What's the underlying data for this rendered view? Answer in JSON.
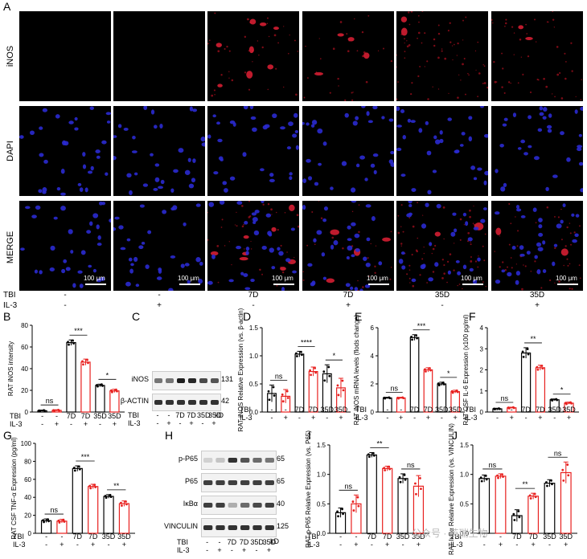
{
  "panels": {
    "A": "A",
    "B": "B",
    "C": "C",
    "D": "D",
    "E": "E",
    "F": "F",
    "G": "G",
    "H": "H",
    "I": "I",
    "J": "J"
  },
  "panelA": {
    "rows": [
      "iNOS",
      "DAPI",
      "MERGE"
    ],
    "scale_bar": "100 μm",
    "tbi_label": "TBI",
    "il3_label": "IL-3",
    "tbi": [
      "-",
      "-",
      "7D",
      "7D",
      "35D",
      "35D"
    ],
    "il3": [
      "-",
      "+",
      "-",
      "+",
      "-",
      "+"
    ]
  },
  "xgroups": {
    "tbi": [
      "-",
      "-",
      "7D",
      "7D",
      "35D",
      "35D"
    ],
    "il3": [
      "-",
      "+",
      "-",
      "+",
      "-",
      "+"
    ],
    "tbi_label": "TBI",
    "il3_label": "IL-3"
  },
  "blotC": {
    "bands": [
      "iNOS",
      "β-ACTIN"
    ],
    "kd": [
      "131",
      "42"
    ],
    "kd_unit": "kD"
  },
  "blotH": {
    "bands": [
      "p-P65",
      "P65",
      "IκBα",
      "VINCULIN"
    ],
    "kd": [
      "65",
      "65",
      "40",
      "125"
    ],
    "kd_unit": "kD"
  },
  "watermark": "公众号 · 英瑞生物",
  "colors": {
    "ctrl": "#000000",
    "il3": "#e8201f"
  },
  "chart_data": [
    {
      "id": "B",
      "type": "bar",
      "ylabel": "RAT iNOS intensity",
      "ylim": [
        0,
        80
      ],
      "yticks": [
        0,
        20,
        40,
        60,
        80
      ],
      "values": [
        1.2,
        1.5,
        64,
        46,
        24.5,
        19.5
      ],
      "errors": [
        0.6,
        0.6,
        2.5,
        2.8,
        1.2,
        1.5
      ],
      "sig": [
        {
          "a": 0,
          "b": 1,
          "label": "ns"
        },
        {
          "a": 2,
          "b": 3,
          "label": "***"
        },
        {
          "a": 4,
          "b": 5,
          "label": "*"
        }
      ]
    },
    {
      "id": "D",
      "type": "bar",
      "ylabel": "RAT iNOS Relative Expression (vs. β-actin)",
      "ylim": [
        0,
        1.5
      ],
      "yticks": [
        0.0,
        0.5,
        1.0,
        1.5
      ],
      "values": [
        0.33,
        0.28,
        1.03,
        0.72,
        0.68,
        0.43
      ],
      "errors": [
        0.15,
        0.12,
        0.05,
        0.08,
        0.16,
        0.17
      ],
      "sig": [
        {
          "a": 0,
          "b": 1,
          "label": "ns"
        },
        {
          "a": 2,
          "b": 3,
          "label": "****"
        },
        {
          "a": 4,
          "b": 5,
          "label": "*"
        }
      ]
    },
    {
      "id": "E",
      "type": "bar",
      "ylabel": "RAT iNOS mRNA levels (flods change)",
      "ylim": [
        0,
        6
      ],
      "yticks": [
        0,
        2,
        4,
        6
      ],
      "values": [
        1.0,
        1.0,
        5.3,
        3.0,
        2.0,
        1.45
      ],
      "errors": [
        0.05,
        0.05,
        0.2,
        0.15,
        0.12,
        0.1
      ],
      "sig": [
        {
          "a": 0,
          "b": 1,
          "label": "ns"
        },
        {
          "a": 2,
          "b": 3,
          "label": "***"
        },
        {
          "a": 4,
          "b": 5,
          "label": "*"
        }
      ]
    },
    {
      "id": "F",
      "type": "bar",
      "ylabel": "RAT CSF IL-6 Expression (x100 pg/ml)",
      "ylim": [
        0,
        4
      ],
      "yticks": [
        0,
        1,
        2,
        3,
        4
      ],
      "values": [
        0.15,
        0.2,
        2.8,
        2.1,
        0.58,
        0.42
      ],
      "errors": [
        0.03,
        0.03,
        0.25,
        0.12,
        0.04,
        0.05
      ],
      "sig": [
        {
          "a": 0,
          "b": 1,
          "label": "ns"
        },
        {
          "a": 2,
          "b": 3,
          "label": "**"
        },
        {
          "a": 4,
          "b": 5,
          "label": "*"
        }
      ]
    },
    {
      "id": "G",
      "type": "bar",
      "ylabel": "RAT CSF TNF-α Expression (pg/ml)",
      "ylim": [
        0,
        100
      ],
      "yticks": [
        0,
        20,
        40,
        60,
        80,
        100
      ],
      "values": [
        14,
        13.5,
        72,
        52,
        41,
        33
      ],
      "errors": [
        2,
        2,
        3,
        2.5,
        2,
        3
      ],
      "sig": [
        {
          "a": 0,
          "b": 1,
          "label": "ns"
        },
        {
          "a": 2,
          "b": 3,
          "label": "***"
        },
        {
          "a": 4,
          "b": 5,
          "label": "**"
        }
      ]
    },
    {
      "id": "I",
      "type": "bar",
      "ylabel": "RAT p-P65 Relative Expression (vs. P65)",
      "ylim": [
        0,
        1.5
      ],
      "yticks": [
        0.0,
        0.5,
        1.0,
        1.5
      ],
      "values": [
        0.35,
        0.5,
        1.33,
        1.1,
        0.93,
        0.8
      ],
      "errors": [
        0.08,
        0.15,
        0.04,
        0.04,
        0.08,
        0.18
      ],
      "sig": [
        {
          "a": 0,
          "b": 1,
          "label": "ns"
        },
        {
          "a": 2,
          "b": 3,
          "label": "**"
        },
        {
          "a": 4,
          "b": 5,
          "label": "ns"
        }
      ]
    },
    {
      "id": "J",
      "type": "bar",
      "ylabel": "RAT IκBα Relative Expression (vs. VINCULIN)",
      "ylim": [
        0,
        1.5
      ],
      "yticks": [
        0.0,
        0.5,
        1.0,
        1.5
      ],
      "values": [
        0.93,
        0.97,
        0.3,
        0.63,
        0.85,
        1.03
      ],
      "errors": [
        0.06,
        0.04,
        0.1,
        0.05,
        0.06,
        0.18
      ],
      "sig": [
        {
          "a": 0,
          "b": 1,
          "label": "ns"
        },
        {
          "a": 2,
          "b": 3,
          "label": "**"
        },
        {
          "a": 4,
          "b": 5,
          "label": "ns"
        }
      ]
    }
  ]
}
